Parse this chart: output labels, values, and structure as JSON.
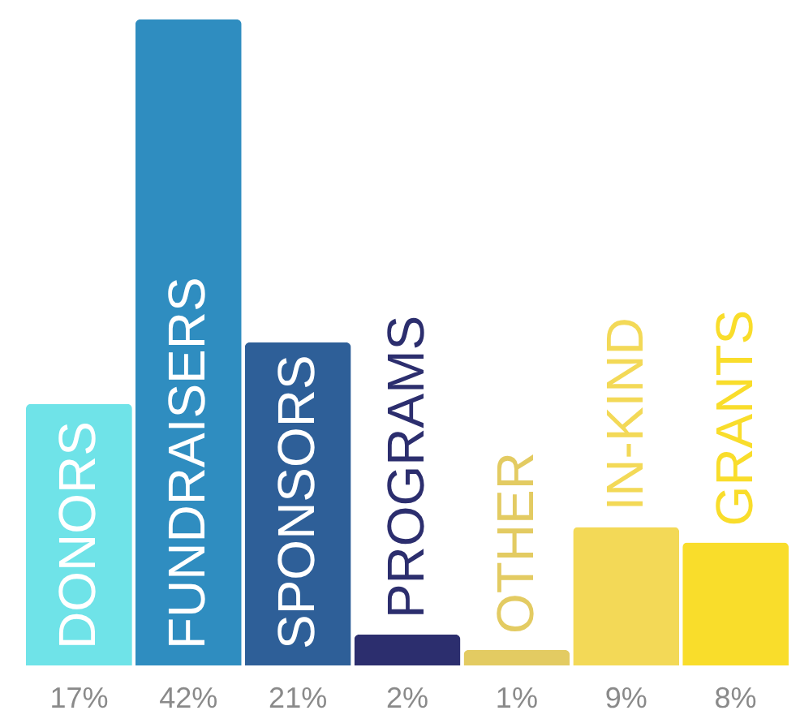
{
  "chart_data": {
    "type": "bar",
    "categories": [
      "DONORS",
      "FUNDRAISERS",
      "SPONSORS",
      "PROGRAMS",
      "OTHER",
      "IN-KIND",
      "GRANTS"
    ],
    "values": [
      17,
      42,
      21,
      2,
      1,
      9,
      8
    ],
    "value_labels": [
      "17%",
      "42%",
      "21%",
      "2%",
      "1%",
      "9%",
      "8%"
    ],
    "colors": [
      "#6fe3e8",
      "#2f8dc0",
      "#2e5f98",
      "#2c2e6e",
      "#e3cb62",
      "#f3d957",
      "#f9dd2b"
    ]
  }
}
